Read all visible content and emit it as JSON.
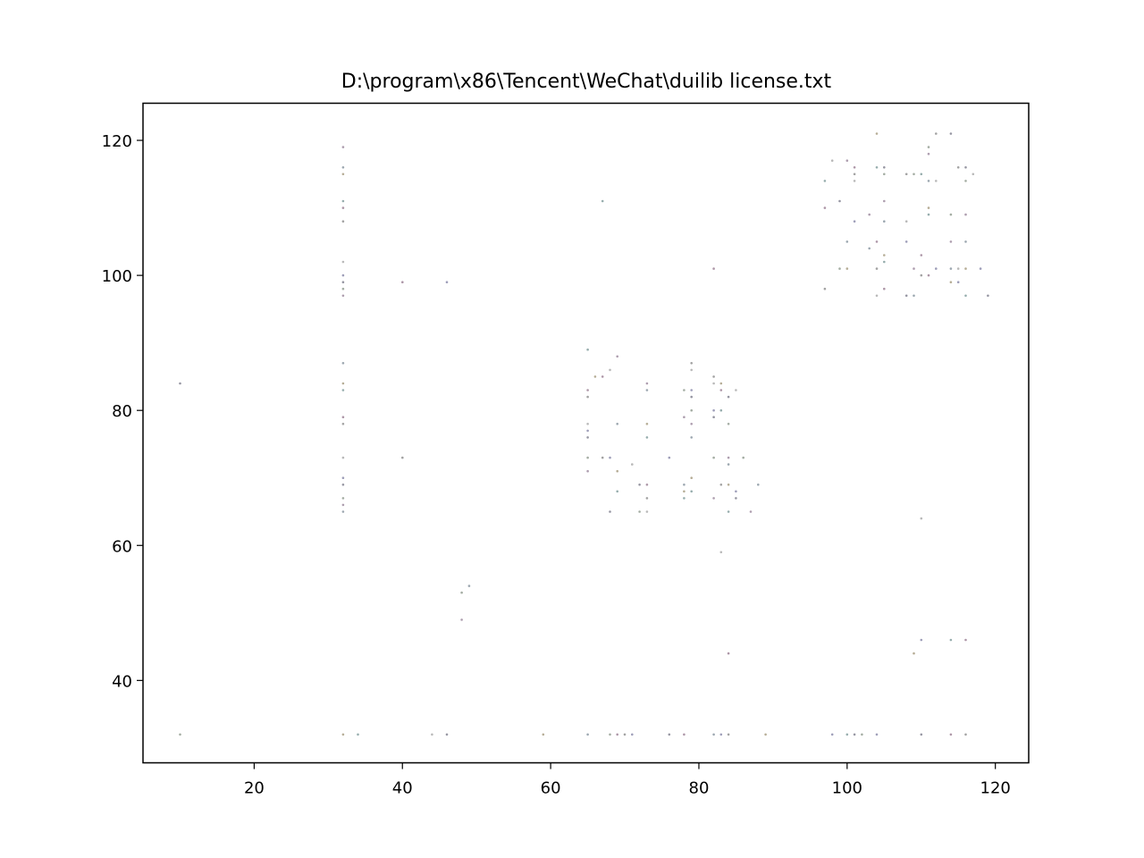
{
  "chart_data": {
    "type": "scatter",
    "title": "D:\\program\\x86\\Tencent\\WeChat\\duilib license.txt",
    "xlabel": "",
    "ylabel": "",
    "xlim": [
      5,
      124.5
    ],
    "ylim": [
      27.8,
      125.5
    ],
    "xticks": [
      20,
      40,
      60,
      80,
      100,
      120
    ],
    "yticks": [
      40,
      60,
      80,
      100,
      120
    ],
    "grid": false,
    "points": [
      [
        10,
        84
      ],
      [
        10,
        32
      ],
      [
        32,
        119
      ],
      [
        32,
        116
      ],
      [
        32,
        115
      ],
      [
        32,
        111
      ],
      [
        32,
        110
      ],
      [
        32,
        108
      ],
      [
        32,
        102
      ],
      [
        32,
        100
      ],
      [
        32,
        99
      ],
      [
        32,
        98
      ],
      [
        32,
        97
      ],
      [
        32,
        87
      ],
      [
        32,
        84
      ],
      [
        32,
        83
      ],
      [
        32,
        79
      ],
      [
        32,
        78
      ],
      [
        32,
        73
      ],
      [
        32,
        70
      ],
      [
        32,
        69
      ],
      [
        32,
        67
      ],
      [
        32,
        66
      ],
      [
        32,
        65
      ],
      [
        32,
        32
      ],
      [
        34,
        32
      ],
      [
        40,
        99
      ],
      [
        40,
        73
      ],
      [
        44,
        32
      ],
      [
        46,
        99
      ],
      [
        46,
        32
      ],
      [
        48,
        53
      ],
      [
        48,
        49
      ],
      [
        49,
        54
      ],
      [
        59,
        32
      ],
      [
        65,
        89
      ],
      [
        65,
        83
      ],
      [
        65,
        82
      ],
      [
        65,
        78
      ],
      [
        65,
        77
      ],
      [
        65,
        76
      ],
      [
        65,
        73
      ],
      [
        65,
        71
      ],
      [
        65,
        32
      ],
      [
        66,
        85
      ],
      [
        67,
        111
      ],
      [
        67,
        85
      ],
      [
        67,
        73
      ],
      [
        68,
        86
      ],
      [
        68,
        73
      ],
      [
        68,
        65
      ],
      [
        68,
        32
      ],
      [
        69,
        88
      ],
      [
        69,
        78
      ],
      [
        69,
        71
      ],
      [
        69,
        68
      ],
      [
        69,
        32
      ],
      [
        70,
        32
      ],
      [
        71,
        72
      ],
      [
        71,
        32
      ],
      [
        72,
        69
      ],
      [
        72,
        65
      ],
      [
        73,
        84
      ],
      [
        73,
        83
      ],
      [
        73,
        78
      ],
      [
        73,
        76
      ],
      [
        73,
        69
      ],
      [
        73,
        67
      ],
      [
        73,
        65
      ],
      [
        76,
        73
      ],
      [
        76,
        32
      ],
      [
        78,
        83
      ],
      [
        78,
        79
      ],
      [
        78,
        69
      ],
      [
        78,
        68
      ],
      [
        78,
        67
      ],
      [
        78,
        32
      ],
      [
        79,
        87
      ],
      [
        79,
        86
      ],
      [
        79,
        83
      ],
      [
        79,
        82
      ],
      [
        79,
        80
      ],
      [
        79,
        78
      ],
      [
        79,
        76
      ],
      [
        79,
        70
      ],
      [
        79,
        68
      ],
      [
        82,
        101
      ],
      [
        82,
        85
      ],
      [
        82,
        84
      ],
      [
        82,
        80
      ],
      [
        82,
        79
      ],
      [
        82,
        73
      ],
      [
        82,
        67
      ],
      [
        82,
        32
      ],
      [
        83,
        84
      ],
      [
        83,
        80
      ],
      [
        83,
        83
      ],
      [
        83,
        69
      ],
      [
        83,
        59
      ],
      [
        83,
        32
      ],
      [
        84,
        82
      ],
      [
        84,
        78
      ],
      [
        84,
        73
      ],
      [
        84,
        72
      ],
      [
        84,
        69
      ],
      [
        84,
        65
      ],
      [
        84,
        44
      ],
      [
        84,
        32
      ],
      [
        85,
        83
      ],
      [
        85,
        68
      ],
      [
        85,
        67
      ],
      [
        86,
        73
      ],
      [
        87,
        65
      ],
      [
        88,
        69
      ],
      [
        89,
        32
      ],
      [
        97,
        114
      ],
      [
        97,
        110
      ],
      [
        97,
        98
      ],
      [
        98,
        117
      ],
      [
        98,
        32
      ],
      [
        99,
        111
      ],
      [
        99,
        101
      ],
      [
        100,
        117
      ],
      [
        100,
        105
      ],
      [
        100,
        101
      ],
      [
        100,
        32
      ],
      [
        101,
        116
      ],
      [
        101,
        115
      ],
      [
        101,
        114
      ],
      [
        101,
        108
      ],
      [
        101,
        32
      ],
      [
        102,
        32
      ],
      [
        103,
        109
      ],
      [
        103,
        104
      ],
      [
        104,
        121
      ],
      [
        104,
        116
      ],
      [
        104,
        105
      ],
      [
        104,
        101
      ],
      [
        104,
        97
      ],
      [
        104,
        32
      ],
      [
        105,
        116
      ],
      [
        105,
        115
      ],
      [
        105,
        111
      ],
      [
        105,
        108
      ],
      [
        105,
        103
      ],
      [
        105,
        102
      ],
      [
        105,
        98
      ],
      [
        108,
        115
      ],
      [
        108,
        108
      ],
      [
        108,
        105
      ],
      [
        108,
        97
      ],
      [
        109,
        115
      ],
      [
        109,
        101
      ],
      [
        109,
        97
      ],
      [
        109,
        44
      ],
      [
        110,
        115
      ],
      [
        110,
        103
      ],
      [
        110,
        100
      ],
      [
        110,
        64
      ],
      [
        110,
        46
      ],
      [
        110,
        32
      ],
      [
        111,
        119
      ],
      [
        111,
        118
      ],
      [
        111,
        114
      ],
      [
        111,
        110
      ],
      [
        111,
        109
      ],
      [
        111,
        100
      ],
      [
        112,
        121
      ],
      [
        112,
        114
      ],
      [
        112,
        101
      ],
      [
        114,
        121
      ],
      [
        114,
        109
      ],
      [
        114,
        105
      ],
      [
        114,
        101
      ],
      [
        114,
        99
      ],
      [
        114,
        46
      ],
      [
        114,
        32
      ],
      [
        115,
        116
      ],
      [
        115,
        101
      ],
      [
        115,
        99
      ],
      [
        116,
        116
      ],
      [
        116,
        114
      ],
      [
        116,
        109
      ],
      [
        116,
        105
      ],
      [
        116,
        101
      ],
      [
        116,
        97
      ],
      [
        116,
        46
      ],
      [
        116,
        32
      ],
      [
        117,
        115
      ],
      [
        118,
        101
      ],
      [
        119,
        97
      ]
    ],
    "point_colors": [
      "#3f3f55",
      "#5a6a58",
      "#6b4f6e",
      "#4a5f6f",
      "#7a6a3f",
      "#3f6a6a",
      "#6a3f5f",
      "#555555",
      "#7f7f7f",
      "#4f4f7f"
    ]
  }
}
